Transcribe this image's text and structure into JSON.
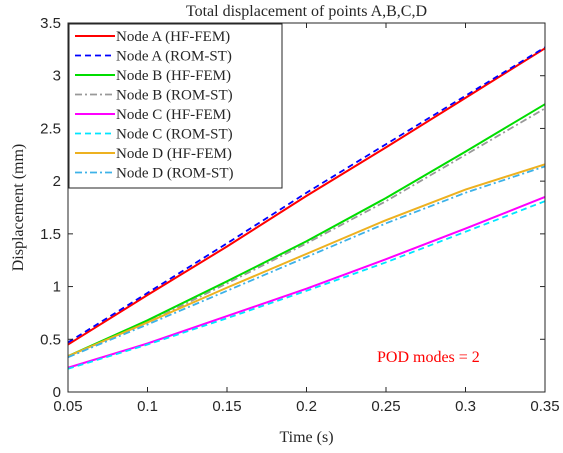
{
  "chart_data": {
    "type": "line",
    "title": "Total displacement of points A,B,C,D",
    "xlabel": "Time (s)",
    "ylabel": "Displacement (mm)",
    "xlim": [
      0.05,
      0.35
    ],
    "ylim": [
      0,
      3.5
    ],
    "x_ticks": [
      "0.05",
      "0.1",
      "0.15",
      "0.2",
      "0.25",
      "0.3",
      "0.35"
    ],
    "y_ticks": [
      "0",
      "0.5",
      "1",
      "1.5",
      "2",
      "2.5",
      "3",
      "3.5"
    ],
    "legend_position": "top-left",
    "grid": false,
    "annotation": {
      "text": "POD modes = 2",
      "color": "#ff0000"
    },
    "x": [
      0.05,
      0.1,
      0.15,
      0.2,
      0.25,
      0.3,
      0.35
    ],
    "series": [
      {
        "name": "Node A (HF-FEM)",
        "color": "#ff0000",
        "style": "solid",
        "values": [
          0.45,
          0.92,
          1.38,
          1.86,
          2.32,
          2.79,
          3.26
        ]
      },
      {
        "name": "Node A (ROM-ST)",
        "color": "#0000ff",
        "style": "dashed",
        "values": [
          0.47,
          0.94,
          1.41,
          1.89,
          2.35,
          2.81,
          3.27
        ]
      },
      {
        "name": "Node B (HF-FEM)",
        "color": "#00dd00",
        "style": "solid",
        "values": [
          0.34,
          0.68,
          1.05,
          1.43,
          1.84,
          2.28,
          2.73
        ]
      },
      {
        "name": "Node B (ROM-ST)",
        "color": "#999999",
        "style": "dashdot",
        "values": [
          0.33,
          0.66,
          1.03,
          1.41,
          1.81,
          2.25,
          2.69
        ]
      },
      {
        "name": "Node C (HF-FEM)",
        "color": "#ff00ff",
        "style": "solid",
        "values": [
          0.23,
          0.46,
          0.72,
          0.98,
          1.26,
          1.55,
          1.85
        ]
      },
      {
        "name": "Node C (ROM-ST)",
        "color": "#00e5ff",
        "style": "dashed",
        "values": [
          0.22,
          0.45,
          0.7,
          0.96,
          1.23,
          1.52,
          1.81
        ]
      },
      {
        "name": "Node D (HF-FEM)",
        "color": "#edb120",
        "style": "solid",
        "values": [
          0.34,
          0.66,
          0.99,
          1.31,
          1.63,
          1.92,
          2.16
        ]
      },
      {
        "name": "Node D (ROM-ST)",
        "color": "#3db2e8",
        "style": "dashdot",
        "values": [
          0.33,
          0.64,
          0.96,
          1.28,
          1.6,
          1.89,
          2.14
        ]
      }
    ]
  }
}
